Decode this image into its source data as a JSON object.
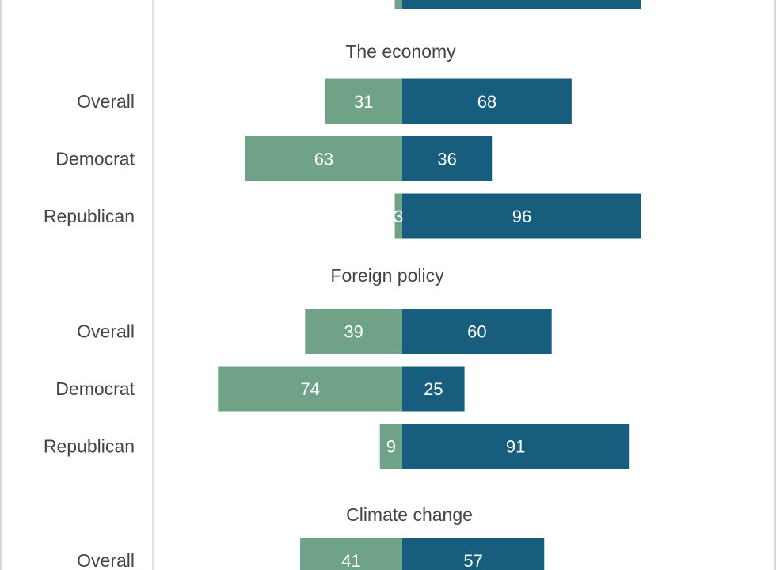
{
  "chart_data": {
    "type": "bar",
    "orientation": "horizontal-diverging",
    "colors": {
      "left": "#70a287",
      "right": "#175d7d",
      "frame": "#d9d9d9",
      "text": "#444444"
    },
    "partial_top": {
      "left_value": 3,
      "right_value": 96
    },
    "groups": [
      {
        "title": "The economy",
        "rows": [
          {
            "label": "Overall",
            "left": 31,
            "right": 68
          },
          {
            "label": "Democrat",
            "left": 63,
            "right": 36
          },
          {
            "label": "Republican",
            "left": 3,
            "right": 96
          }
        ]
      },
      {
        "title": "Foreign policy",
        "rows": [
          {
            "label": "Overall",
            "left": 39,
            "right": 60
          },
          {
            "label": "Democrat",
            "left": 74,
            "right": 25
          },
          {
            "label": "Republican",
            "left": 9,
            "right": 91
          }
        ]
      },
      {
        "title": "Climate change",
        "rows": [
          {
            "label": "Overall",
            "left": 41,
            "right": 57
          }
        ]
      }
    ]
  }
}
